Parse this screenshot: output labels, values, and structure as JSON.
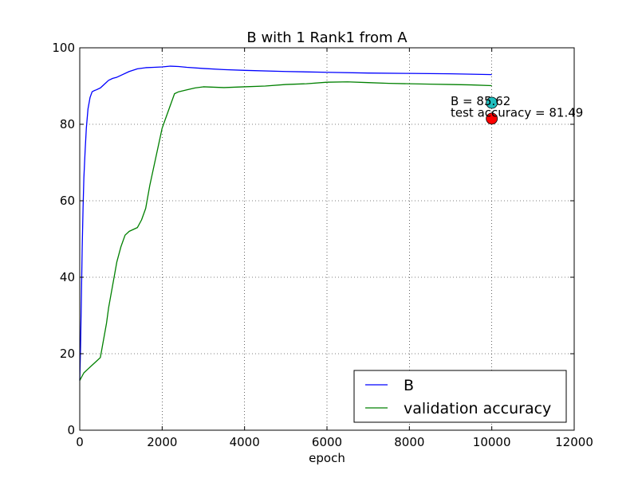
{
  "chart_data": {
    "type": "line",
    "title": "B with 1 Rank1 from A",
    "xlabel": "epoch",
    "ylabel": "",
    "xlim": [
      0,
      12000
    ],
    "ylim": [
      0,
      100
    ],
    "xticks": [
      0,
      2000,
      4000,
      6000,
      8000,
      10000,
      12000
    ],
    "yticks": [
      0,
      20,
      40,
      60,
      80,
      100
    ],
    "grid": true,
    "legend_position": "lower-right",
    "series": [
      {
        "name": "B",
        "color": "#0000ff",
        "x": [
          0,
          20,
          40,
          60,
          80,
          100,
          130,
          160,
          200,
          250,
          300,
          350,
          400,
          500,
          600,
          700,
          800,
          900,
          1000,
          1200,
          1400,
          1600,
          1800,
          2000,
          2200,
          2400,
          2600,
          3000,
          3500,
          4000,
          5000,
          6000,
          7000,
          8000,
          9000,
          10000
        ],
        "y": [
          13,
          22,
          35,
          48,
          58,
          66,
          73,
          79,
          84,
          87,
          88.5,
          88.8,
          89,
          89.5,
          90.5,
          91.5,
          92,
          92.3,
          92.8,
          93.8,
          94.5,
          94.8,
          94.9,
          95,
          95.2,
          95.1,
          94.9,
          94.6,
          94.3,
          94.1,
          93.8,
          93.6,
          93.4,
          93.3,
          93.2,
          93.0
        ]
      },
      {
        "name": "validation accuracy",
        "color": "#008000",
        "x": [
          0,
          100,
          200,
          300,
          400,
          500,
          550,
          600,
          650,
          700,
          750,
          800,
          850,
          900,
          950,
          1000,
          1100,
          1200,
          1300,
          1400,
          1500,
          1600,
          1700,
          1800,
          1900,
          2000,
          2100,
          2200,
          2300,
          2400,
          2600,
          2800,
          3000,
          3500,
          4000,
          4500,
          5000,
          5500,
          6000,
          6500,
          7000,
          7500,
          8000,
          8500,
          9000,
          9500,
          10000
        ],
        "y": [
          13,
          15,
          16,
          17,
          18,
          19,
          22,
          25,
          28,
          32,
          35,
          38,
          41,
          44,
          46,
          48,
          51,
          52,
          52.5,
          53,
          55,
          58,
          64,
          69,
          74,
          79,
          82,
          85,
          88,
          88.5,
          89,
          89.5,
          89.8,
          89.6,
          89.8,
          90,
          90.4,
          90.6,
          91,
          91.1,
          90.9,
          90.7,
          90.6,
          90.5,
          90.4,
          90.3,
          90.1
        ]
      }
    ],
    "points": [
      {
        "x": 10000,
        "y": 85.62,
        "color": "#1fbfbf"
      },
      {
        "x": 10000,
        "y": 81.49,
        "color": "#ff0000"
      }
    ],
    "annotations": [
      {
        "text": "B = 85.62",
        "x": 9000,
        "y": 86
      },
      {
        "text": "test accuracy = 81.49",
        "x": 9000,
        "y": 83
      }
    ]
  }
}
